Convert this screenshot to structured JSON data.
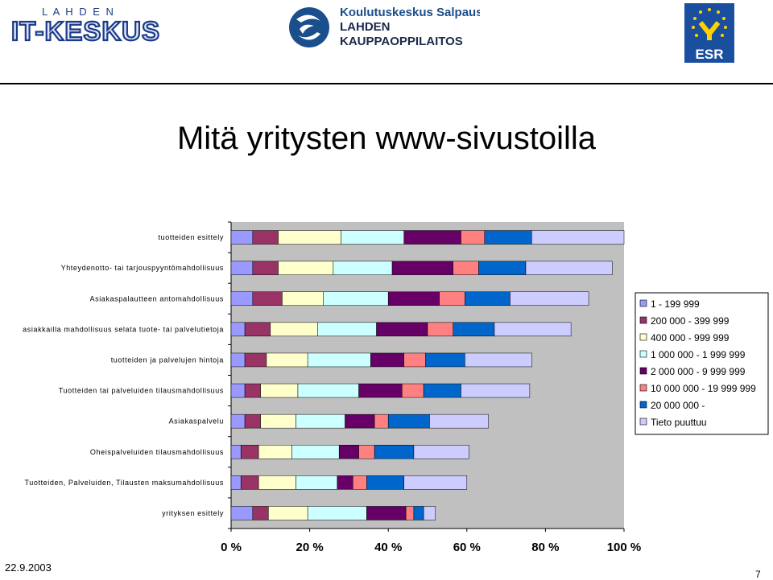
{
  "header": {
    "logo_left_small": "L A H D E N",
    "logo_left_big": "IT-KESKUS",
    "logo_mid_line1": "Koulutuskeskus Salpaus",
    "logo_mid_line2": "LAHDEN",
    "logo_mid_line3": "KAUPPAOPPILAITOS",
    "logo_right_text": "ESR"
  },
  "slide": {
    "title": "Mitä yritysten www-sivustoilla",
    "date": "22.9.2003",
    "page": "7"
  },
  "colors": {
    "plot_bg": "#c0c0c0",
    "series": [
      "#9999ff",
      "#993366",
      "#ffffcc",
      "#ccffff",
      "#660066",
      "#ff8080",
      "#0066cc",
      "#ccccff"
    ]
  },
  "chart_data": {
    "type": "bar",
    "orientation": "horizontal",
    "stacked": true,
    "categories": [
      "tuotteiden esittely",
      "Yhteydenotto- tai tarjouspyyntömahdollisuus",
      "Asiakaspalautteen antomahdollisuus",
      "asiakkailla mahdollisuus selata tuote- tai palvelutietoja",
      "tuotteiden ja palvelujen hintoja",
      "Tuotteiden tai palveluiden tilausmahdollisuus",
      "Asiakaspalvelu",
      "Oheispalveluiden tilausmahdollisuus",
      "Tuotteiden, Palveluiden, Tilausten maksumahdollisuus",
      "yrityksen esittely"
    ],
    "series": [
      {
        "name": "1 - 199 999",
        "values": [
          5.5,
          5.5,
          5.5,
          3.5,
          3.5,
          3.5,
          3.5,
          2.5,
          2.5,
          5.5
        ]
      },
      {
        "name": "200 000 - 399 999",
        "values": [
          6.5,
          6.5,
          7.5,
          6.5,
          5.5,
          4.0,
          4.0,
          4.5,
          4.5,
          4.0
        ]
      },
      {
        "name": "400 000 - 999 999",
        "values": [
          16.0,
          14.0,
          10.5,
          12.0,
          10.5,
          9.5,
          9.0,
          8.5,
          9.5,
          10.0
        ]
      },
      {
        "name": "1 000 000 - 1 999 999",
        "values": [
          16.0,
          15.0,
          16.5,
          15.0,
          16.0,
          15.5,
          12.5,
          12.0,
          10.5,
          15.0
        ]
      },
      {
        "name": "2 000 000 - 9 999 999",
        "values": [
          14.5,
          15.5,
          13.0,
          13.0,
          8.5,
          11.0,
          7.5,
          5.0,
          4.0,
          10.0
        ]
      },
      {
        "name": "10 000 000 - 19 999 999",
        "values": [
          6.0,
          6.5,
          6.5,
          6.5,
          5.5,
          5.5,
          3.5,
          4.0,
          3.5,
          2.0
        ]
      },
      {
        "name": "20 000 000 -",
        "values": [
          12.0,
          12.0,
          11.5,
          10.5,
          10.0,
          9.5,
          10.5,
          10.0,
          9.5,
          2.5
        ]
      },
      {
        "name": "Tieto puuttuu",
        "values": [
          23.5,
          22.0,
          20.0,
          19.5,
          17.0,
          17.5,
          15.0,
          14.0,
          16.0,
          3.0
        ]
      }
    ],
    "xlim": [
      0,
      100
    ],
    "xticks": [
      "0 %",
      "20 %",
      "40 %",
      "60 %",
      "80 %",
      "100 %"
    ],
    "legend_position": "right",
    "grid": false
  }
}
